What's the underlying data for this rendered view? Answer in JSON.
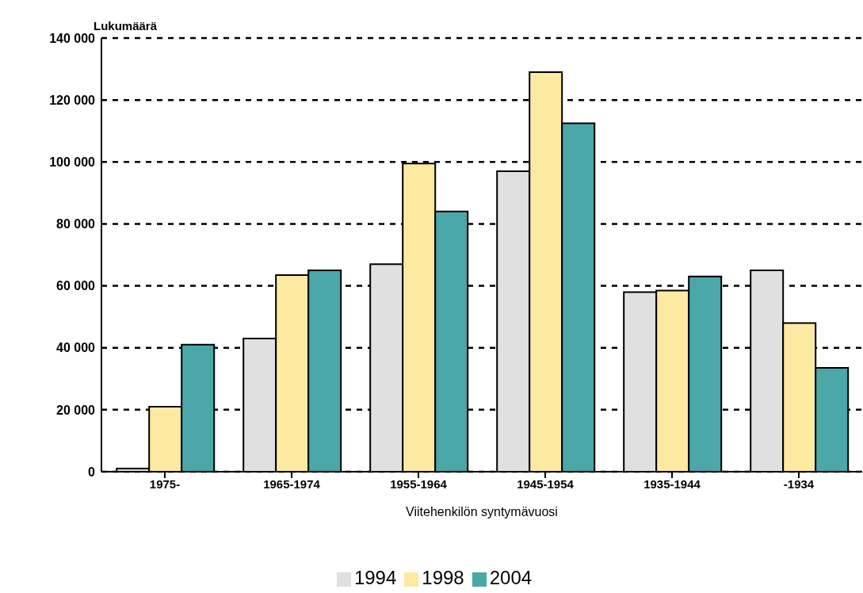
{
  "chart_data": {
    "type": "bar",
    "ylabel": "Lukumäärä",
    "xlabel": "Viitehenkilön syntymävuosi",
    "categories": [
      "1975-",
      "1965-1974",
      "1955-1964",
      "1945-1954",
      "1935-1944",
      "-1934"
    ],
    "series": [
      {
        "name": "1994",
        "color": "#e0e0e0",
        "values": [
          1000,
          43000,
          67000,
          97000,
          58000,
          65000
        ]
      },
      {
        "name": "1998",
        "color": "#fdeaa0",
        "values": [
          21000,
          63500,
          99500,
          129000,
          58500,
          48000
        ]
      },
      {
        "name": "2004",
        "color": "#4aa8a8",
        "values": [
          41000,
          65000,
          84000,
          112500,
          63000,
          33500
        ]
      }
    ],
    "ylim": [
      0,
      140000
    ],
    "yticks": [
      {
        "value": 0,
        "label": "0"
      },
      {
        "value": 20000,
        "label": "20 000"
      },
      {
        "value": 40000,
        "label": "40 000"
      },
      {
        "value": 60000,
        "label": "60 000"
      },
      {
        "value": 80000,
        "label": "80 000"
      },
      {
        "value": 100000,
        "label": "100 000"
      },
      {
        "value": 120000,
        "label": "120 000"
      },
      {
        "value": 140000,
        "label": "140 000"
      }
    ],
    "grid": "y",
    "legend": "bottom"
  }
}
